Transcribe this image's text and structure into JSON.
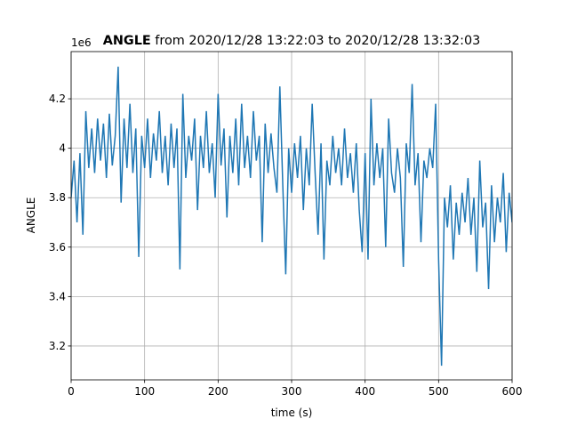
{
  "chart_data": {
    "type": "line",
    "title_bold": "ANGLE",
    "title": "from 2020/12/28 13:22:03 to 2020/12/28 13:32:03",
    "x_label": "time (s)",
    "y_label": "ANGLE",
    "y_offset_text": "1e6",
    "xlim": [
      0,
      600
    ],
    "xticks": [
      0,
      100,
      200,
      300,
      400,
      500,
      600
    ],
    "ylim": [
      3.063,
      4.391
    ],
    "yticks": [
      3.2,
      3.4,
      3.6,
      3.8,
      4.0,
      4.2
    ],
    "grid": true,
    "x": [
      0,
      4,
      8,
      12,
      16,
      20,
      24,
      28,
      32,
      36,
      40,
      44,
      48,
      52,
      56,
      60,
      64,
      68,
      72,
      76,
      80,
      84,
      88,
      92,
      96,
      100,
      104,
      108,
      112,
      116,
      120,
      124,
      128,
      132,
      136,
      140,
      144,
      148,
      152,
      156,
      160,
      164,
      168,
      172,
      176,
      180,
      184,
      188,
      192,
      196,
      200,
      204,
      208,
      212,
      216,
      220,
      224,
      228,
      232,
      236,
      240,
      244,
      248,
      252,
      256,
      260,
      264,
      268,
      272,
      276,
      280,
      284,
      288,
      292,
      296,
      300,
      304,
      308,
      312,
      316,
      320,
      324,
      328,
      332,
      336,
      340,
      344,
      348,
      352,
      356,
      360,
      364,
      368,
      372,
      376,
      380,
      384,
      388,
      392,
      396,
      400,
      404,
      408,
      412,
      416,
      420,
      424,
      428,
      432,
      436,
      440,
      444,
      448,
      452,
      456,
      460,
      464,
      468,
      472,
      476,
      480,
      484,
      488,
      492,
      496,
      500,
      504,
      508,
      512,
      516,
      520,
      524,
      528,
      532,
      536,
      540,
      544,
      548,
      552,
      556,
      560,
      564,
      568,
      572,
      576,
      580,
      584,
      588,
      592,
      596,
      600
    ],
    "series": [
      {
        "name": "ANGLE",
        "color": "#1f77b4",
        "values": [
          3.8,
          3.95,
          3.7,
          3.98,
          3.65,
          4.15,
          3.92,
          4.08,
          3.9,
          4.12,
          3.95,
          4.1,
          3.88,
          4.14,
          3.93,
          4.05,
          4.33,
          3.78,
          4.12,
          3.92,
          4.18,
          3.9,
          4.08,
          3.56,
          4.05,
          3.92,
          4.12,
          3.88,
          4.06,
          3.95,
          4.15,
          3.9,
          4.05,
          3.85,
          4.1,
          3.92,
          4.08,
          3.51,
          4.22,
          3.88,
          4.05,
          3.95,
          4.12,
          3.75,
          4.05,
          3.92,
          4.15,
          3.9,
          4.02,
          3.8,
          4.22,
          3.93,
          4.08,
          3.72,
          4.05,
          3.9,
          4.12,
          3.85,
          4.18,
          3.92,
          4.05,
          3.88,
          4.15,
          3.95,
          4.05,
          3.62,
          4.1,
          3.9,
          4.06,
          3.92,
          3.82,
          4.25,
          3.85,
          3.49,
          4.0,
          3.82,
          4.02,
          3.88,
          4.05,
          3.75,
          4.0,
          3.85,
          4.18,
          3.9,
          3.65,
          4.02,
          3.55,
          3.95,
          3.85,
          4.05,
          3.9,
          4.0,
          3.85,
          4.08,
          3.88,
          3.98,
          3.82,
          4.02,
          3.75,
          3.58,
          3.98,
          3.55,
          4.2,
          3.85,
          4.02,
          3.88,
          4.0,
          3.6,
          4.12,
          3.9,
          3.82,
          4.0,
          3.88,
          3.52,
          4.02,
          3.9,
          4.26,
          3.85,
          3.98,
          3.62,
          3.95,
          3.88,
          4.0,
          3.92,
          4.18,
          3.55,
          3.12,
          3.8,
          3.68,
          3.85,
          3.55,
          3.78,
          3.65,
          3.82,
          3.7,
          3.88,
          3.65,
          3.8,
          3.5,
          3.95,
          3.68,
          3.78,
          3.43,
          3.85,
          3.62,
          3.8,
          3.7,
          3.9,
          3.58,
          3.82,
          3.7
        ]
      }
    ]
  }
}
